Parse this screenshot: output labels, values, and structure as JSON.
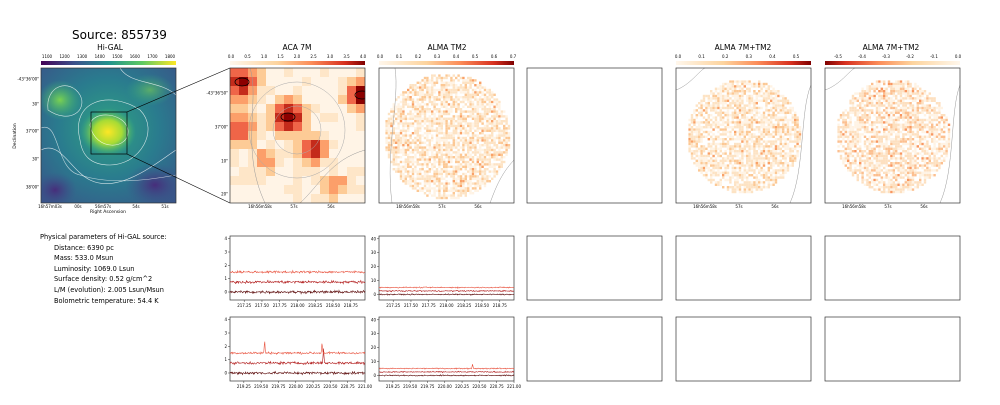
{
  "source_title": "Source: 855739",
  "panels": {
    "higal": {
      "title": "Hi-GAL",
      "colorbar_ticks": [
        "1100",
        "1200",
        "1300",
        "1400",
        "1500",
        "1600",
        "1700",
        "1800"
      ],
      "y_ticks": [
        "-43°36'00\"",
        "30\"",
        "37'00\"",
        "30\"",
        "38'00\""
      ],
      "x_ticks": [
        "16h57m03s",
        "00s",
        "56m57s",
        "54s",
        "51s"
      ],
      "ylabel": "Declination",
      "xlabel": "Right Ascension"
    },
    "aca": {
      "title": "ACA 7M",
      "colorbar_ticks": [
        "0.0",
        "0.5",
        "1.0",
        "1.5",
        "2.0",
        "2.5",
        "3.0",
        "3.5",
        "4.0"
      ],
      "y_ticks": [
        "-43°36'50\"",
        "37'00\"",
        "10\"",
        "20\""
      ],
      "x_ticks": [
        "16h56m58s",
        "57s",
        "56s"
      ]
    },
    "alma_tm2": {
      "title": "ALMA TM2",
      "colorbar_ticks": [
        "0.0",
        "0.1",
        "0.2",
        "0.3",
        "0.4",
        "0.5",
        "0.6",
        "0.7"
      ],
      "x_ticks": [
        "16h56m58s",
        "57s",
        "56s"
      ]
    },
    "alma_7m_tm2_a": {
      "title": "ALMA 7M+TM2",
      "colorbar_ticks": [
        "0.0",
        "0.1",
        "0.2",
        "0.3",
        "0.4",
        "0.5"
      ],
      "x_ticks": [
        "16h56m58s",
        "57s",
        "56s"
      ]
    },
    "alma_7m_tm2_b": {
      "title": "ALMA 7M+TM2",
      "colorbar_ticks": [
        "-0.5",
        "-0.4",
        "-0.3",
        "-0.2",
        "-0.1",
        "0.0"
      ],
      "x_ticks": [
        "16h56m58s",
        "57s",
        "56s"
      ]
    }
  },
  "parameters": {
    "heading": "Physical parameters of Hi-GAL source:",
    "items": [
      "Distance: 6390 pc",
      "Mass: 533.0 Msun",
      "Luminosity: 1069.0 Lsun",
      "Surface density: 0.52 g/cm^2",
      "L/M (evolution): 2.005 Lsun/Msun",
      "Bolometric temperature: 54.4 K"
    ]
  },
  "colors": {
    "spec_dark": "#5b0a0a",
    "spec_mid": "#b01818",
    "spec_light": "#e8533f",
    "frame": "#333333"
  },
  "chart_data": [
    {
      "type": "line",
      "name": "spectrum ACA 7M band 1",
      "x_ticks": [
        217.25,
        217.5,
        217.75,
        218.0,
        218.25,
        218.5,
        218.75
      ],
      "xlim": [
        217.05,
        218.95
      ],
      "y_ticks": [
        0,
        1,
        2,
        3,
        4
      ],
      "ylim": [
        -0.6,
        4.2
      ],
      "series": [
        {
          "offset": 0,
          "noise": 0.15
        },
        {
          "offset": 0.75,
          "noise": 0.15
        },
        {
          "offset": 1.5,
          "noise": 0.12
        }
      ]
    },
    {
      "type": "line",
      "name": "spectrum ALMA TM2 band 1",
      "x_ticks": [
        217.25,
        217.5,
        217.75,
        218.0,
        218.25,
        218.5,
        218.75
      ],
      "xlim": [
        217.05,
        218.95
      ],
      "y_ticks": [
        0,
        10,
        20,
        30,
        40
      ],
      "ylim": [
        -4,
        42
      ],
      "series": [
        {
          "offset": 0,
          "noise": 0.6
        },
        {
          "offset": 2.5,
          "noise": 0.6
        },
        {
          "offset": 5,
          "noise": 0.6
        }
      ]
    },
    {
      "type": "line",
      "name": "spectrum ACA 7M band 2",
      "x_ticks": [
        219.25,
        219.5,
        219.75,
        220.0,
        220.25,
        220.5,
        220.75,
        221.0
      ],
      "xlim": [
        219.05,
        221.0
      ],
      "y_ticks": [
        0,
        1,
        2,
        3,
        4
      ],
      "ylim": [
        -0.6,
        4.2
      ],
      "series": [
        {
          "offset": 0,
          "noise": 0.15
        },
        {
          "offset": 0.75,
          "noise": 0.15,
          "peaks": [
            [
              220.4,
              1.1
            ]
          ]
        },
        {
          "offset": 1.5,
          "noise": 0.12,
          "peaks": [
            [
              219.55,
              0.9
            ],
            [
              220.38,
              0.8
            ]
          ]
        }
      ]
    },
    {
      "type": "line",
      "name": "spectrum ALMA TM2 band 2",
      "x_ticks": [
        219.25,
        219.5,
        219.75,
        220.0,
        220.25,
        220.5,
        220.75,
        221.0
      ],
      "xlim": [
        219.05,
        221.0
      ],
      "y_ticks": [
        0,
        10,
        20,
        30,
        40
      ],
      "ylim": [
        -4,
        42
      ],
      "series": [
        {
          "offset": 0,
          "noise": 0.6
        },
        {
          "offset": 2.5,
          "noise": 0.6
        },
        {
          "offset": 5,
          "noise": 0.6,
          "peaks": [
            [
              220.4,
              3.0
            ]
          ]
        }
      ]
    }
  ]
}
